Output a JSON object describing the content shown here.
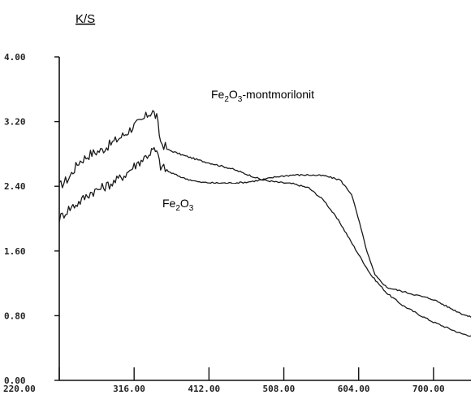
{
  "chart_data": {
    "type": "line",
    "ylabel": "K/S",
    "xlim": [
      220,
      748
    ],
    "ylim": [
      0,
      4
    ],
    "x_ticks": [
      "220.00",
      "316.00",
      "412.00",
      "508.00",
      "604.00",
      "700.00"
    ],
    "y_ticks": [
      "0.00",
      "0.80",
      "1.60",
      "2.40",
      "3.20",
      "4.00"
    ],
    "annotations": [
      {
        "name": "Fe2O3-montmorilonit",
        "parts": [
          "Fe",
          "2",
          "O",
          "3",
          "-montmorilonit"
        ]
      },
      {
        "name": "Fe2O3",
        "parts": [
          "Fe",
          "2",
          "O",
          "3",
          ""
        ]
      }
    ],
    "series": [
      {
        "x": [
          220,
          232,
          245,
          260,
          275,
          290,
          305,
          316,
          325,
          335,
          340,
          345,
          350,
          360,
          380,
          400,
          420,
          440,
          460,
          480,
          500,
          520,
          540,
          560,
          580,
          600,
          620,
          640,
          660,
          680,
          700,
          720,
          735,
          748
        ],
        "y": [
          2.4,
          2.5,
          2.7,
          2.8,
          2.85,
          2.95,
          3.05,
          3.15,
          3.2,
          3.3,
          3.32,
          3.25,
          2.95,
          2.85,
          2.78,
          2.72,
          2.67,
          2.62,
          2.55,
          2.48,
          2.45,
          2.43,
          2.38,
          2.22,
          1.95,
          1.62,
          1.3,
          1.08,
          0.93,
          0.82,
          0.72,
          0.64,
          0.58,
          0.55
        ]
      },
      {
        "x": [
          220,
          232,
          245,
          260,
          275,
          290,
          305,
          316,
          325,
          335,
          340,
          345,
          350,
          360,
          380,
          400,
          420,
          440,
          460,
          480,
          500,
          520,
          540,
          560,
          580,
          595,
          605,
          615,
          625,
          640,
          660,
          680,
          700,
          720,
          735,
          748
        ],
        "y": [
          2.0,
          2.12,
          2.2,
          2.32,
          2.38,
          2.45,
          2.55,
          2.65,
          2.72,
          2.8,
          2.85,
          2.82,
          2.65,
          2.58,
          2.5,
          2.45,
          2.44,
          2.44,
          2.45,
          2.48,
          2.52,
          2.54,
          2.54,
          2.53,
          2.48,
          2.3,
          1.95,
          1.58,
          1.3,
          1.15,
          1.1,
          1.05,
          1.0,
          0.9,
          0.83,
          0.78
        ]
      }
    ]
  }
}
